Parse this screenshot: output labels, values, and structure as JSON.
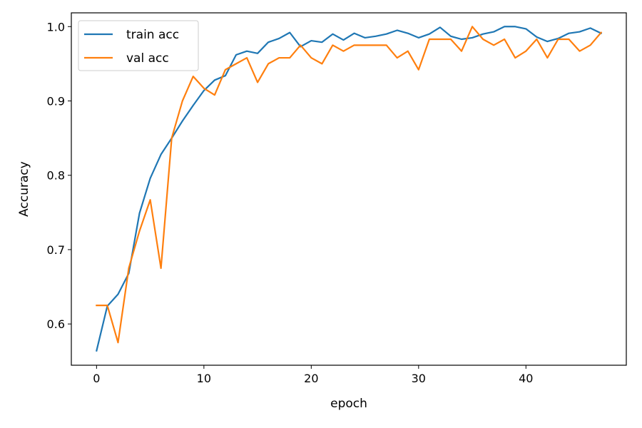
{
  "chart_data": {
    "type": "line",
    "xlabel": "epoch",
    "ylabel": "Accuracy",
    "xlim": [
      -2.35,
      49.35
    ],
    "ylim": [
      0.5445,
      1.0185
    ],
    "xticks": [
      0,
      10,
      20,
      30,
      40
    ],
    "yticks": [
      0.6,
      0.7,
      0.8,
      0.9,
      1.0
    ],
    "xtick_labels": [
      "0",
      "10",
      "20",
      "30",
      "40"
    ],
    "ytick_labels": [
      "0.6",
      "0.7",
      "0.8",
      "0.9",
      "1.0"
    ],
    "grid": false,
    "legend_position": "top-left",
    "x": [
      0,
      1,
      2,
      3,
      4,
      5,
      6,
      7,
      8,
      9,
      10,
      11,
      12,
      13,
      14,
      15,
      16,
      17,
      18,
      19,
      20,
      21,
      22,
      23,
      24,
      25,
      26,
      27,
      28,
      29,
      30,
      31,
      32,
      33,
      34,
      35,
      36,
      37,
      38,
      39,
      40,
      41,
      42,
      43,
      44,
      45,
      46,
      47
    ],
    "series": [
      {
        "name": "train acc",
        "color": "#1f77b4",
        "values": [
          0.564,
          0.624,
          0.64,
          0.668,
          0.749,
          0.796,
          0.828,
          0.85,
          0.873,
          0.894,
          0.914,
          0.928,
          0.934,
          0.962,
          0.967,
          0.964,
          0.979,
          0.984,
          0.992,
          0.973,
          0.981,
          0.979,
          0.99,
          0.982,
          0.991,
          0.985,
          0.987,
          0.99,
          0.995,
          0.991,
          0.985,
          0.99,
          0.999,
          0.987,
          0.983,
          0.985,
          0.99,
          0.993,
          1.0,
          1.0,
          0.997,
          0.986,
          0.98,
          0.984,
          0.991,
          0.993,
          0.998,
          0.991
        ]
      },
      {
        "name": "val acc",
        "color": "#ff7f0e",
        "values": [
          0.625,
          0.625,
          0.575,
          0.675,
          0.725,
          0.767,
          0.675,
          0.85,
          0.9,
          0.933,
          0.917,
          0.908,
          0.942,
          0.95,
          0.958,
          0.925,
          0.95,
          0.958,
          0.958,
          0.975,
          0.958,
          0.95,
          0.975,
          0.967,
          0.975,
          0.975,
          0.975,
          0.975,
          0.958,
          0.967,
          0.942,
          0.983,
          0.983,
          0.983,
          0.967,
          1.0,
          0.983,
          0.975,
          0.983,
          0.958,
          0.967,
          0.983,
          0.958,
          0.983,
          0.983,
          0.967,
          0.975,
          0.992
        ]
      }
    ]
  }
}
